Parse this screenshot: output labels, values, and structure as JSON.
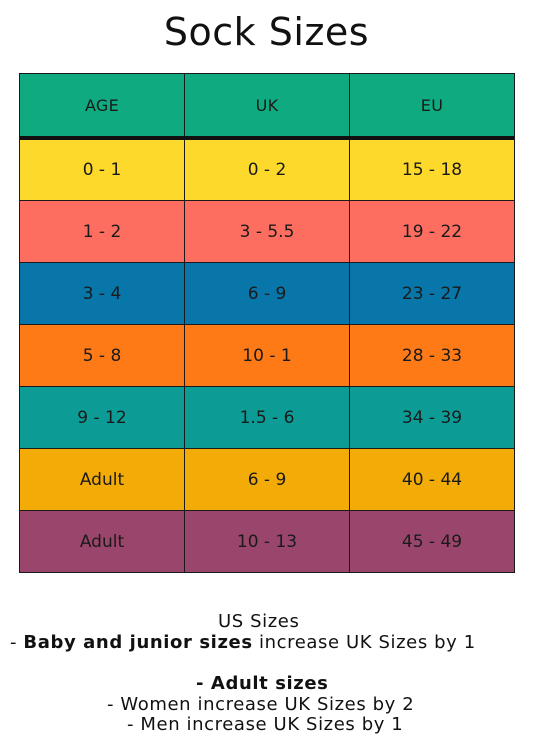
{
  "title": "Sock Sizes",
  "table": {
    "headers": [
      "AGE",
      "UK",
      "EU"
    ],
    "header_color": "#0faa7f",
    "rows": [
      {
        "age": "0 - 1",
        "uk": "0 - 2",
        "eu": "15 - 18",
        "color": "#fcd92b"
      },
      {
        "age": "1 - 2",
        "uk": "3 - 5.5",
        "eu": "19 - 22",
        "color": "#fd6e60"
      },
      {
        "age": "3 - 4",
        "uk": "6 - 9",
        "eu": "23 - 27",
        "color": "#0876a8"
      },
      {
        "age": "5 - 8",
        "uk": "10 - 1",
        "eu": "28 - 33",
        "color": "#fe7a16"
      },
      {
        "age": "9 - 12",
        "uk": "1.5 - 6",
        "eu": "34 - 39",
        "color": "#0d9b95"
      },
      {
        "age": "Adult",
        "uk": "6 - 9",
        "eu": "40 - 44",
        "color": "#f3ac07"
      },
      {
        "age": "Adult",
        "uk": "10 - 13",
        "eu": "45 - 49",
        "color": "#9a466c"
      }
    ]
  },
  "notes": {
    "us_title": "US Sizes",
    "baby_prefix": "- ",
    "baby_bold": "Baby and junior sizes",
    "baby_rest": " increase UK Sizes by 1",
    "adult_title": "- Adult sizes",
    "women": "- Women increase UK Sizes by 2",
    "men": "- Men increase UK Sizes by 1"
  }
}
